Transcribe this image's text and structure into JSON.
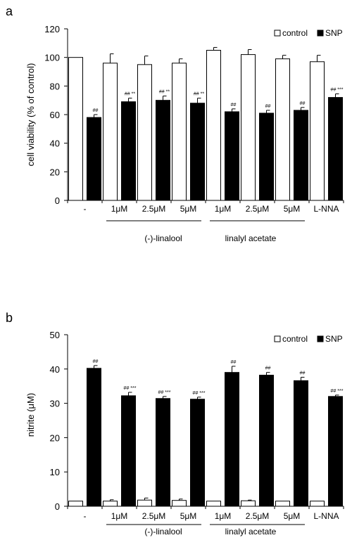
{
  "panels": [
    {
      "panel_label": "a",
      "legend": [
        "control",
        "SNP"
      ],
      "group_labels": [
        "(-)-linalool",
        "linalyl  acetate"
      ]
    },
    {
      "panel_label": "b",
      "legend": [
        "control",
        "SNP"
      ],
      "group_labels": [
        "(-)-linalool",
        "linalyl  acetate"
      ]
    }
  ],
  "colors": {
    "control": "#ffffff",
    "snp": "#000000",
    "axis": "#000000"
  },
  "chart_data": [
    {
      "type": "bar",
      "title": "",
      "xlabel": "",
      "ylabel": "cell viability (% of control)",
      "ylim": [
        0,
        120
      ],
      "yticks": [
        0,
        20,
        40,
        60,
        80,
        100,
        120
      ],
      "categories": [
        "-",
        "1μM",
        "2.5μM",
        "5μM",
        "1μM",
        "2.5μM",
        "5μM",
        "L-NNA"
      ],
      "series": [
        {
          "name": "control",
          "values": [
            100,
            96,
            95,
            96,
            105,
            102,
            99,
            97
          ],
          "errors": [
            0,
            6.5,
            6,
            3,
            2,
            3.5,
            2.5,
            4.5
          ]
        },
        {
          "name": "SNP",
          "values": [
            58,
            69,
            70,
            68,
            62,
            61,
            63,
            72
          ],
          "errors": [
            2,
            2.5,
            3,
            3.5,
            2,
            2,
            2,
            2.5
          ]
        }
      ],
      "annotations": [
        "##",
        "## **",
        "## **",
        "## **",
        "##",
        "##",
        "##",
        "## ***"
      ],
      "legend_position": "top-right",
      "grid": false
    },
    {
      "type": "bar",
      "title": "",
      "xlabel": "",
      "ylabel": "nitrite (μM)",
      "ylim": [
        0,
        50
      ],
      "yticks": [
        0,
        10,
        20,
        30,
        40,
        50
      ],
      "categories": [
        "-",
        "1μM",
        "2.5μM",
        "5μM",
        "1μM",
        "2.5μM",
        "5μM",
        "L-NNA"
      ],
      "series": [
        {
          "name": "control",
          "values": [
            1.5,
            1.5,
            1.8,
            1.7,
            1.5,
            1.6,
            1.5,
            1.5
          ],
          "errors": [
            0,
            0.4,
            0.6,
            0.4,
            0,
            0.2,
            0,
            0
          ]
        },
        {
          "name": "SNP",
          "values": [
            40.2,
            32.2,
            31.4,
            31.2,
            39,
            38.2,
            36.6,
            32
          ],
          "errors": [
            0.8,
            1,
            0.6,
            0.6,
            1.8,
            0.8,
            1,
            0.4
          ]
        }
      ],
      "annotations": [
        "##",
        "## ***",
        "## ***",
        "## ***",
        "##",
        "##",
        "##",
        "## ***"
      ],
      "legend_position": "top-right",
      "grid": false
    }
  ]
}
